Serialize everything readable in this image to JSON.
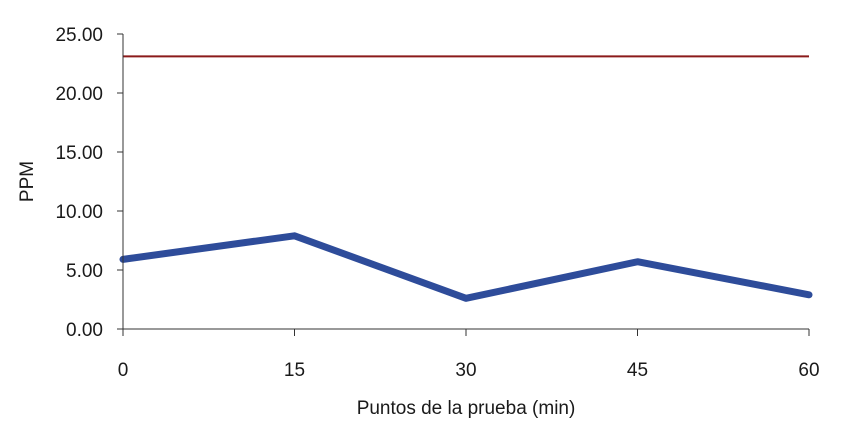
{
  "chart_data": {
    "type": "line",
    "x": [
      0,
      15,
      30,
      45,
      60
    ],
    "x_tick_labels": [
      "0",
      "15",
      "30",
      "45",
      "60"
    ],
    "y_tick_labels": [
      "0.00",
      "5.00",
      "10.00",
      "15.00",
      "20.00",
      "25.00"
    ],
    "xlim": [
      0,
      60
    ],
    "ylim": [
      0,
      25
    ],
    "xlabel": "Puntos de la prueba (min)",
    "ylabel": "PPM",
    "grid": false,
    "series": [
      {
        "values": [
          5.9,
          7.9,
          2.6,
          5.7,
          2.9
        ],
        "color": "#2e4c9a"
      }
    ],
    "reference_lines": [
      {
        "y": 23.1,
        "color": "#8b1a1a"
      }
    ]
  }
}
